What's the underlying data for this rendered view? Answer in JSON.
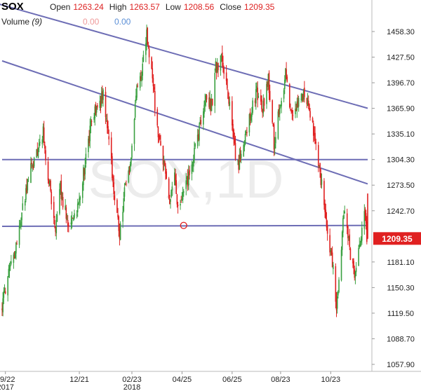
{
  "symbol": "SOX",
  "ohlc": {
    "open_label": "Open",
    "open": "1263.24",
    "high_label": "High",
    "high": "1263.57",
    "low_label": "Low",
    "low": "1208.56",
    "close_label": "Close",
    "close": "1209.35"
  },
  "volume": {
    "label": "Volume",
    "period": "(9)",
    "value1": "0.00",
    "value2": "0.00"
  },
  "watermark": "SOX,1D",
  "colors": {
    "up": "#3aa040",
    "down": "#e02020",
    "trendline": "#6d6db5",
    "price_badge": "#e02020",
    "marker": "#e02020"
  },
  "chart_data": {
    "type": "candlestick",
    "interval": "1D",
    "ylim": [
      1045,
      1475
    ],
    "price_ticks": [
      "1458.30",
      "1427.50",
      "1396.70",
      "1365.90",
      "1335.10",
      "1304.30",
      "1273.50",
      "1242.70",
      "1209.35",
      "1181.10",
      "1150.30",
      "1119.50",
      "1088.70",
      "1057.90"
    ],
    "x_ticks": [
      {
        "label": "09/22",
        "sub": "2017"
      },
      {
        "label": "12/21",
        "sub": ""
      },
      {
        "label": "02/23",
        "sub": "2018"
      },
      {
        "label": "04/25",
        "sub": ""
      },
      {
        "label": "06/25",
        "sub": ""
      },
      {
        "label": "08/23",
        "sub": ""
      },
      {
        "label": "10/23",
        "sub": ""
      }
    ],
    "last_price": "1209.35",
    "path": [
      [
        "2017-09-18",
        1128
      ],
      [
        "2017-09-22",
        1150
      ],
      [
        "2017-10-03",
        1190
      ],
      [
        "2017-10-12",
        1240
      ],
      [
        "2017-10-20",
        1282
      ],
      [
        "2017-11-01",
        1320
      ],
      [
        "2017-11-07",
        1336
      ],
      [
        "2017-11-15",
        1270
      ],
      [
        "2017-11-22",
        1215
      ],
      [
        "2017-11-28",
        1270
      ],
      [
        "2017-12-08",
        1222
      ],
      [
        "2017-12-20",
        1250
      ],
      [
        "2017-12-28",
        1300
      ],
      [
        "2018-01-04",
        1342
      ],
      [
        "2018-01-12",
        1370
      ],
      [
        "2018-01-19",
        1382
      ],
      [
        "2018-01-26",
        1330
      ],
      [
        "2018-02-02",
        1260
      ],
      [
        "2018-02-08",
        1215
      ],
      [
        "2018-02-14",
        1265
      ],
      [
        "2018-02-21",
        1300
      ],
      [
        "2018-02-28",
        1380
      ],
      [
        "2018-03-08",
        1418
      ],
      [
        "2018-03-13",
        1455
      ],
      [
        "2018-03-20",
        1400
      ],
      [
        "2018-03-27",
        1330
      ],
      [
        "2018-04-03",
        1300
      ],
      [
        "2018-04-10",
        1255
      ],
      [
        "2018-04-16",
        1285
      ],
      [
        "2018-04-20",
        1240
      ],
      [
        "2018-04-26",
        1258
      ],
      [
        "2018-05-02",
        1280
      ],
      [
        "2018-05-10",
        1310
      ],
      [
        "2018-05-17",
        1345
      ],
      [
        "2018-05-24",
        1380
      ],
      [
        "2018-05-31",
        1370
      ],
      [
        "2018-06-05",
        1415
      ],
      [
        "2018-06-12",
        1425
      ],
      [
        "2018-06-20",
        1385
      ],
      [
        "2018-06-27",
        1320
      ],
      [
        "2018-07-02",
        1295
      ],
      [
        "2018-07-10",
        1330
      ],
      [
        "2018-07-18",
        1360
      ],
      [
        "2018-07-25",
        1385
      ],
      [
        "2018-08-01",
        1365
      ],
      [
        "2018-08-08",
        1400
      ],
      [
        "2018-08-15",
        1325
      ],
      [
        "2018-08-22",
        1370
      ],
      [
        "2018-08-29",
        1405
      ],
      [
        "2018-09-06",
        1355
      ],
      [
        "2018-09-13",
        1372
      ],
      [
        "2018-09-20",
        1385
      ],
      [
        "2018-09-27",
        1370
      ],
      [
        "2018-10-04",
        1325
      ],
      [
        "2018-10-09",
        1290
      ],
      [
        "2018-10-12",
        1275
      ],
      [
        "2018-10-18",
        1225
      ],
      [
        "2018-10-25",
        1180
      ],
      [
        "2018-10-30",
        1125
      ],
      [
        "2018-11-05",
        1200
      ],
      [
        "2018-11-09",
        1250
      ],
      [
        "2018-11-15",
        1198
      ],
      [
        "2018-11-21",
        1160
      ],
      [
        "2018-11-27",
        1205
      ],
      [
        "2018-12-03",
        1240
      ],
      [
        "2018-12-06",
        1209
      ]
    ],
    "last_candle": {
      "date": "2018-12-07",
      "open": 1263.24,
      "high": 1263.57,
      "low": 1208.56,
      "close": 1209.35
    },
    "trendlines": [
      {
        "from": [
          "2017-09-01",
          1495
        ],
        "to": [
          "2018-12-07",
          1366
        ]
      },
      {
        "from": [
          "2017-09-18",
          1423
        ],
        "to": [
          "2018-12-07",
          1275
        ]
      },
      {
        "from": [
          "2017-09-18",
          1304.3
        ],
        "to": [
          "2018-12-07",
          1304.3
        ]
      },
      {
        "from": [
          "2017-09-18",
          1224
        ],
        "to": [
          "2018-12-07",
          1225
        ]
      }
    ],
    "marker": {
      "date": "2018-04-27",
      "price": 1225
    }
  }
}
